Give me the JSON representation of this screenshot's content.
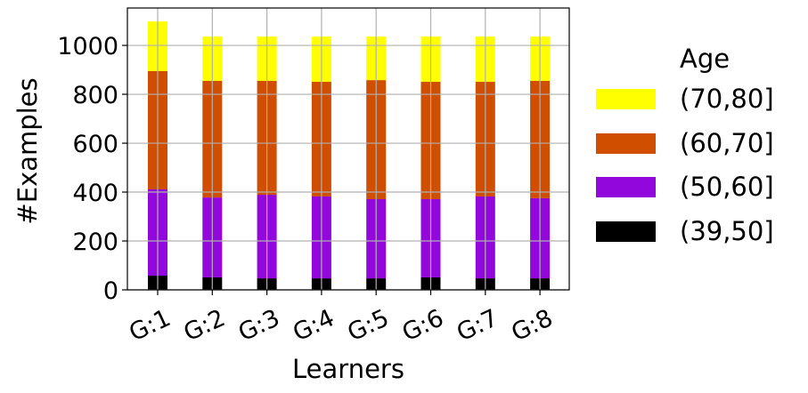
{
  "chart_data": {
    "type": "bar",
    "stacked": true,
    "title": "",
    "xlabel": "Learners",
    "ylabel": "#Examples",
    "categories": [
      "G:1",
      "G:2",
      "G:3",
      "G:4",
      "G:5",
      "G:6",
      "G:7",
      "G:8"
    ],
    "series": [
      {
        "name": "(39,50]",
        "color": "#000000",
        "values": [
          58,
          51,
          47,
          47,
          47,
          51,
          47,
          47
        ]
      },
      {
        "name": "(50,60]",
        "color": "#9208DC",
        "values": [
          353,
          327,
          342,
          335,
          324,
          320,
          335,
          328
        ]
      },
      {
        "name": "(60,70]",
        "color": "#D04E00",
        "values": [
          484,
          477,
          466,
          469,
          487,
          480,
          469,
          480
        ]
      },
      {
        "name": "(70,80]",
        "color": "#FFFF00",
        "values": [
          203,
          181,
          181,
          185,
          178,
          185,
          185,
          181
        ]
      }
    ],
    "yticks": [
      0,
      200,
      400,
      600,
      800,
      1000
    ],
    "ylim": [
      0,
      1153
    ],
    "grid": true,
    "legend": {
      "title": "Age",
      "position": "right",
      "order": [
        "(70,80]",
        "(60,70]",
        "(50,60]",
        "(39,50]"
      ]
    }
  }
}
